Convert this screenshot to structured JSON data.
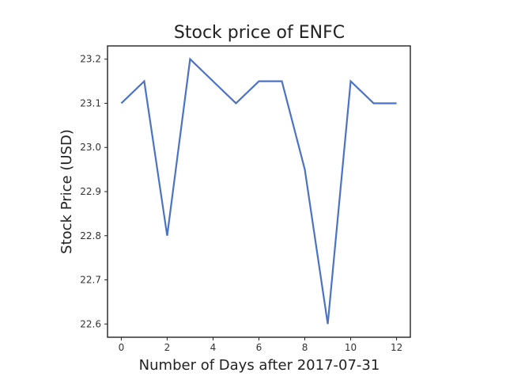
{
  "chart_data": {
    "type": "line",
    "title": "Stock price of ENFC",
    "xlabel": "Number of Days after 2017-07-31",
    "ylabel": "Stock Price (USD)",
    "x": [
      0,
      1,
      2,
      3,
      4,
      5,
      6,
      7,
      8,
      9,
      10,
      11,
      12
    ],
    "series": [
      {
        "values": [
          23.1,
          23.15,
          22.8,
          23.2,
          23.15,
          23.1,
          23.15,
          23.15,
          22.95,
          22.6,
          23.15,
          23.1,
          23.1
        ]
      }
    ],
    "xlim": [
      -0.6,
      12.6
    ],
    "ylim": [
      22.57,
      23.23
    ],
    "xticks": [
      "0",
      "2",
      "4",
      "6",
      "8",
      "10",
      "12"
    ],
    "yticks": [
      "22.6",
      "22.7",
      "22.8",
      "22.9",
      "23.0",
      "23.1",
      "23.2"
    ],
    "grid": false,
    "line_color": "#4c72c6"
  }
}
